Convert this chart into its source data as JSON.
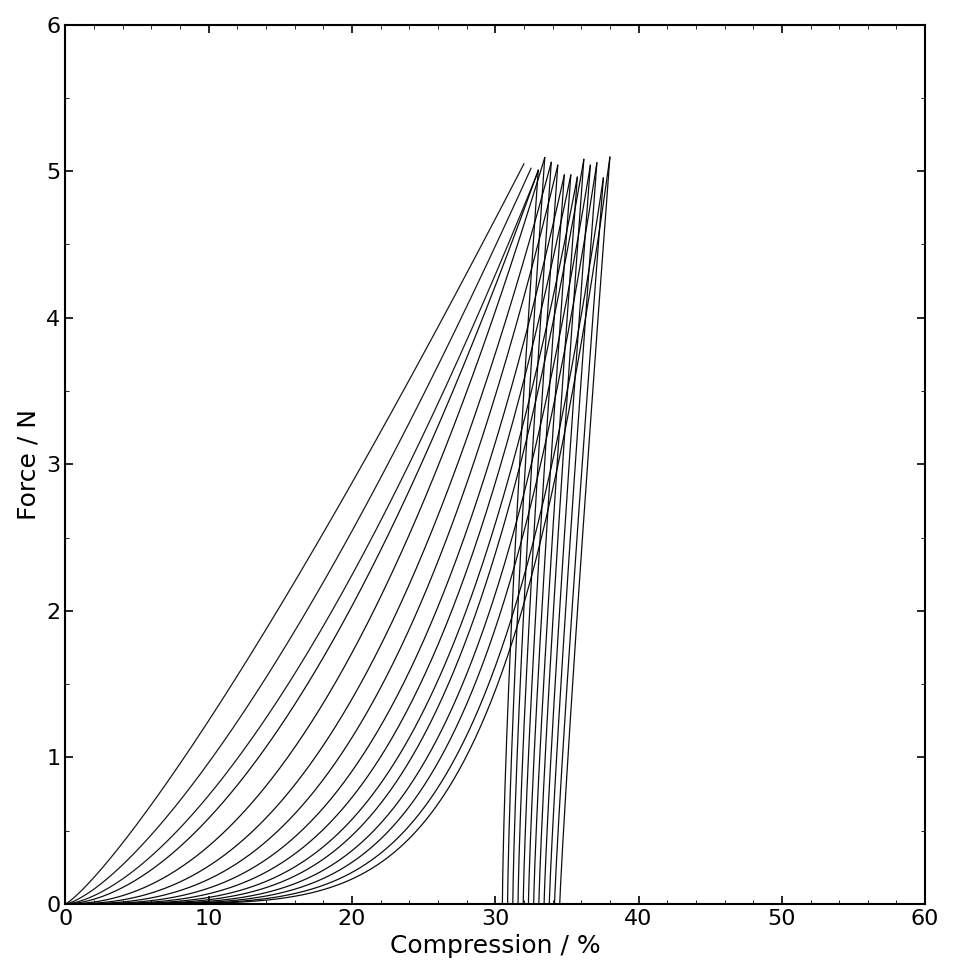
{
  "title": "",
  "xlabel": "Compression / %",
  "ylabel": "Force / N",
  "xlim": [
    0,
    60
  ],
  "ylim": [
    0,
    6
  ],
  "xticks": [
    0,
    10,
    20,
    30,
    40,
    50,
    60
  ],
  "yticks": [
    0,
    1,
    2,
    3,
    4,
    5,
    6
  ],
  "line_color": "#000000",
  "background_color": "#ffffff",
  "xlabel_fontsize": 18,
  "ylabel_fontsize": 18,
  "tick_fontsize": 16,
  "num_loading": 12,
  "peak_y": 5.0
}
